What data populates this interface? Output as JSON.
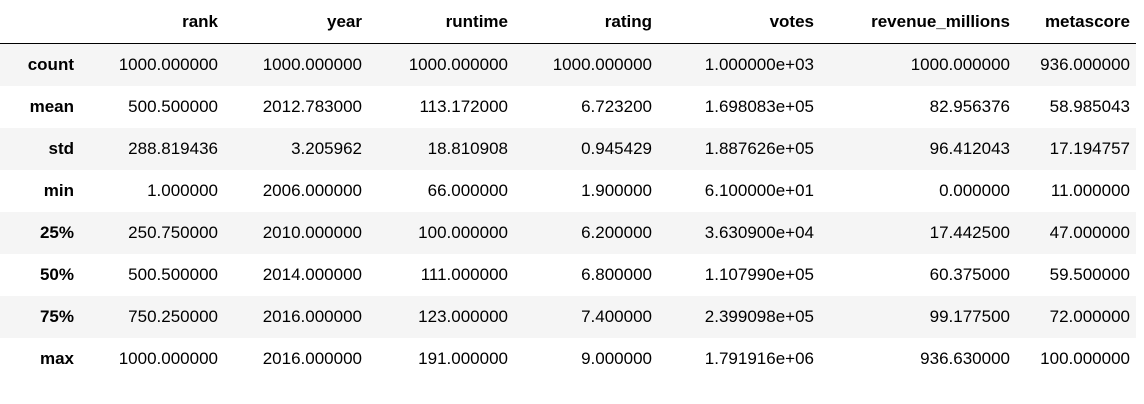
{
  "table": {
    "index_header": "",
    "columns": [
      "rank",
      "year",
      "runtime",
      "rating",
      "votes",
      "revenue_millions",
      "metascore"
    ],
    "rows": [
      {
        "label": "count",
        "values": [
          "1000.000000",
          "1000.000000",
          "1000.000000",
          "1000.000000",
          "1.000000e+03",
          "1000.000000",
          "936.000000"
        ]
      },
      {
        "label": "mean",
        "values": [
          "500.500000",
          "2012.783000",
          "113.172000",
          "6.723200",
          "1.698083e+05",
          "82.956376",
          "58.985043"
        ]
      },
      {
        "label": "std",
        "values": [
          "288.819436",
          "3.205962",
          "18.810908",
          "0.945429",
          "1.887626e+05",
          "96.412043",
          "17.194757"
        ]
      },
      {
        "label": "min",
        "values": [
          "1.000000",
          "2006.000000",
          "66.000000",
          "1.900000",
          "6.100000e+01",
          "0.000000",
          "11.000000"
        ]
      },
      {
        "label": "25%",
        "values": [
          "250.750000",
          "2010.000000",
          "100.000000",
          "6.200000",
          "3.630900e+04",
          "17.442500",
          "47.000000"
        ]
      },
      {
        "label": "50%",
        "values": [
          "500.500000",
          "2014.000000",
          "111.000000",
          "6.800000",
          "1.107990e+05",
          "60.375000",
          "59.500000"
        ]
      },
      {
        "label": "75%",
        "values": [
          "750.250000",
          "2016.000000",
          "123.000000",
          "7.400000",
          "2.399098e+05",
          "99.177500",
          "72.000000"
        ]
      },
      {
        "label": "max",
        "values": [
          "1000.000000",
          "2016.000000",
          "191.000000",
          "9.000000",
          "1.791916e+06",
          "936.630000",
          "100.000000"
        ]
      }
    ]
  }
}
